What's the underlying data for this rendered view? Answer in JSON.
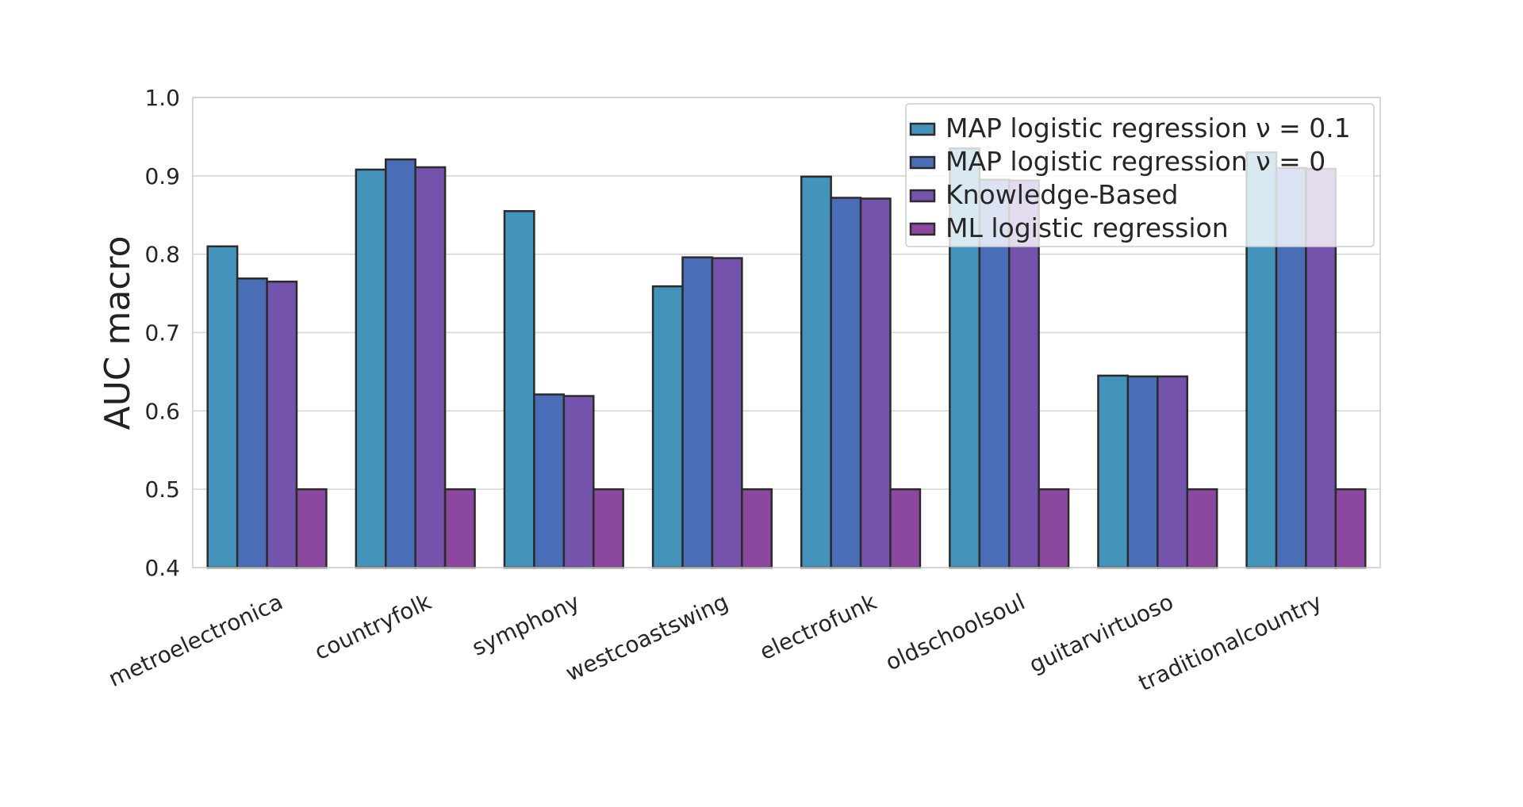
{
  "chart_data": {
    "type": "bar",
    "title": "",
    "xlabel": "",
    "ylabel": "AUC macro",
    "ylim": [
      0.4,
      1.0
    ],
    "yticks": [
      0.4,
      0.5,
      0.6,
      0.7,
      0.8,
      0.9,
      1.0
    ],
    "ytick_labels": [
      "0.4",
      "0.5",
      "0.6",
      "0.7",
      "0.8",
      "0.9",
      "1.0"
    ],
    "grid": "horizontal",
    "legend_position": "top-right",
    "categories": [
      "metroelectronica",
      "countryfolk",
      "symphony",
      "westcoastswing",
      "electrofunk",
      "oldschoolsoul",
      "guitarvirtuoso",
      "traditionalcountry"
    ],
    "series": [
      {
        "name": "MAP logistic regression ν = 0.1",
        "color": "#4393bb",
        "values": [
          0.81,
          0.908,
          0.855,
          0.759,
          0.899,
          0.935,
          0.645,
          0.93
        ]
      },
      {
        "name": "MAP logistic regression ν = 0",
        "color": "#4a6db8",
        "values": [
          0.769,
          0.921,
          0.621,
          0.796,
          0.872,
          0.895,
          0.644,
          0.91
        ]
      },
      {
        "name": "Knowledge-Based",
        "color": "#7353ab",
        "values": [
          0.765,
          0.911,
          0.619,
          0.795,
          0.871,
          0.894,
          0.644,
          0.909
        ]
      },
      {
        "name": "ML logistic regression",
        "color": "#8c489e",
        "values": [
          0.5,
          0.5,
          0.5,
          0.5,
          0.5,
          0.5,
          0.5,
          0.5
        ]
      }
    ]
  }
}
